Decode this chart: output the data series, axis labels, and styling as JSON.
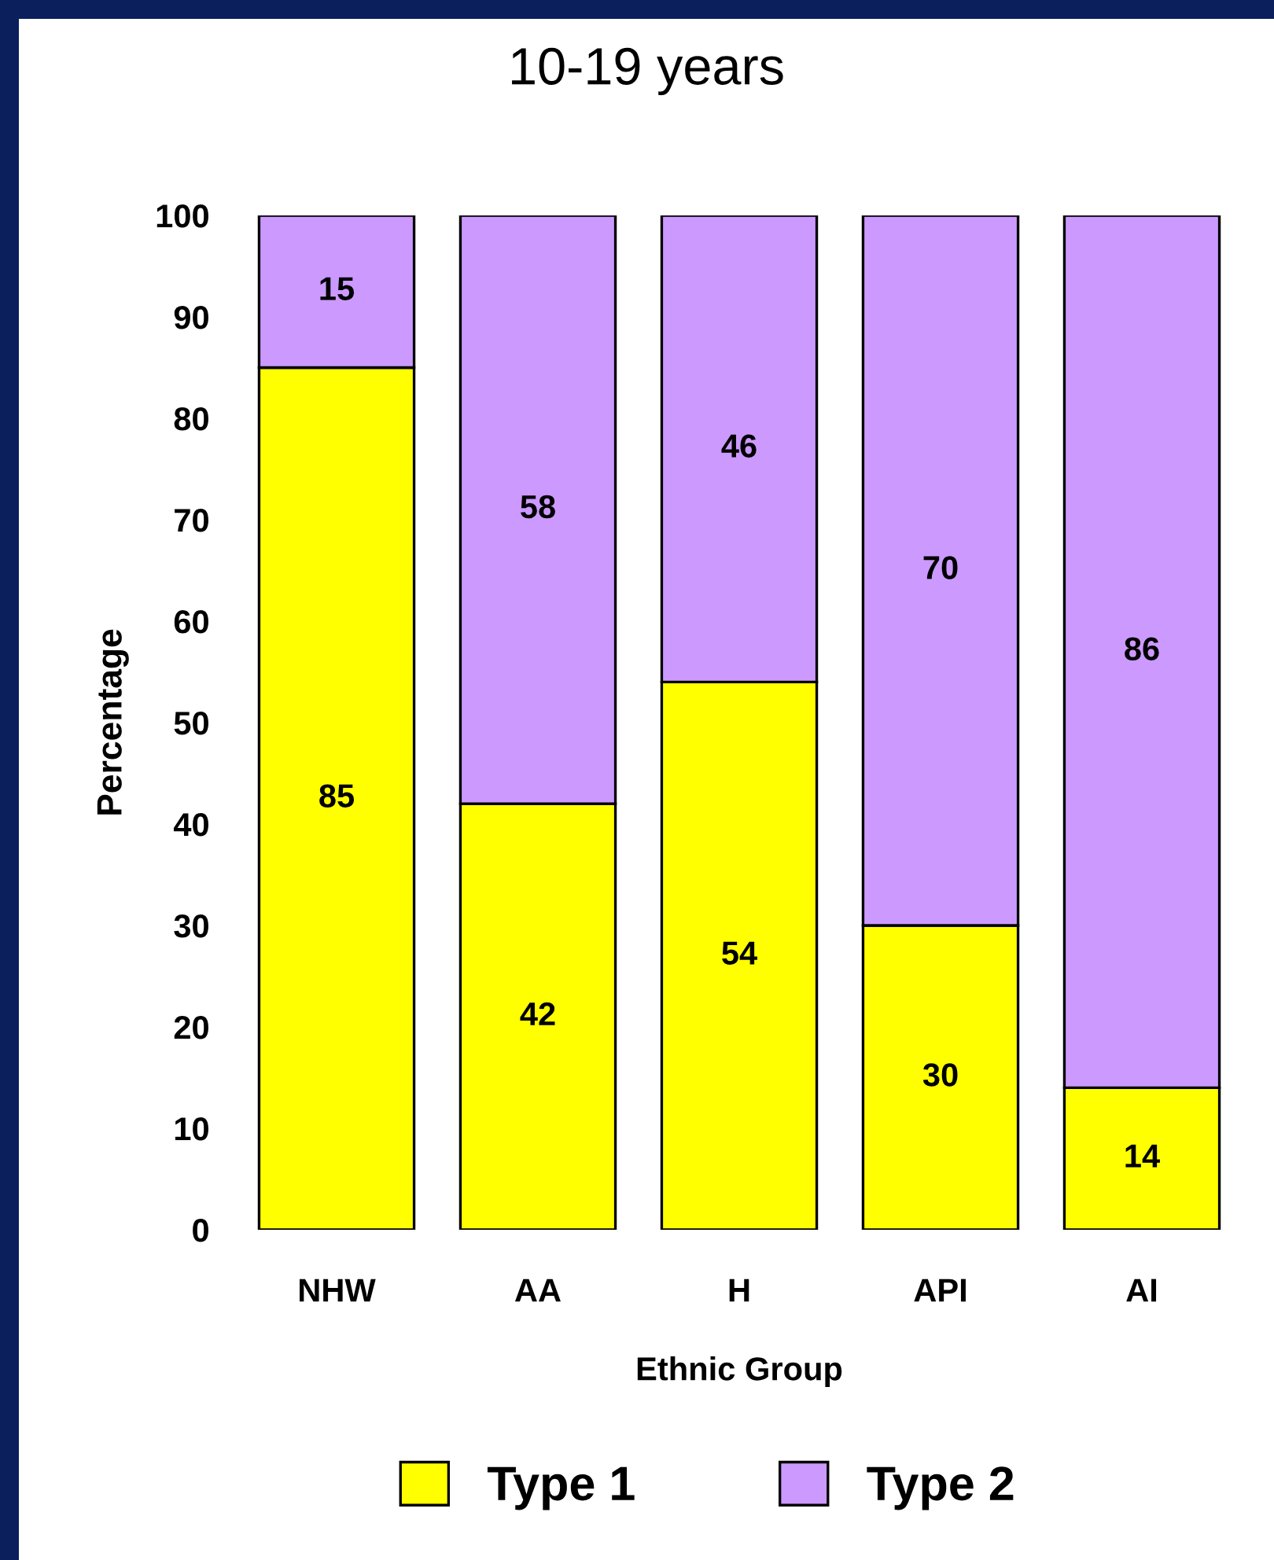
{
  "chart_data": {
    "type": "bar",
    "title": "10-19 years",
    "xlabel": "Ethnic Group",
    "ylabel": "Percentage",
    "categories": [
      "NHW",
      "AA",
      "H",
      "API",
      "AI"
    ],
    "stacked": true,
    "data_labels": true,
    "ylim": [
      0,
      100
    ],
    "yticks": [
      0,
      10,
      20,
      30,
      40,
      50,
      60,
      70,
      80,
      90,
      100
    ],
    "grid": false,
    "legend": "bottom",
    "series": [
      {
        "name": "Type 1",
        "color": "#ffff00",
        "values": [
          85,
          42,
          54,
          30,
          14
        ]
      },
      {
        "name": "Type 2",
        "color": "#cc99ff",
        "values": [
          15,
          58,
          46,
          70,
          86
        ]
      }
    ]
  }
}
